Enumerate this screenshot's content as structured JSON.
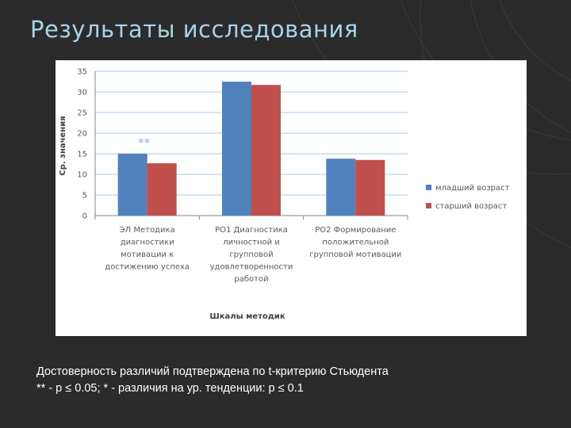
{
  "slide": {
    "title": "Результаты исследования",
    "note_line1": "Достоверность различий подтверждена по t-критерию Стьюдента",
    "note_line2": "** - p ≤ 0.05; * - различия на ур. тенденции: p ≤ 0.1"
  },
  "chart_data": {
    "type": "bar",
    "categories": [
      [
        "ЭЛ   Методика",
        "диагностики",
        "мотивации к",
        "достижению успеха"
      ],
      [
        "РО1  Диагностика",
        "личностной и",
        "групповой",
        "удовлетворенности",
        "работой"
      ],
      [
        "РО2  Формирование",
        "положительной",
        "групповой мотивации"
      ]
    ],
    "series": [
      {
        "name": "младший возраст",
        "color": "#4f81bd",
        "values": [
          15,
          32.5,
          13.8
        ]
      },
      {
        "name": "старший возраст",
        "color": "#c0504d",
        "values": [
          12.7,
          31.7,
          13.5
        ]
      }
    ],
    "annotations": [
      {
        "category_index": 0,
        "text": "**"
      }
    ],
    "xlabel": "Шкалы методик",
    "ylabel": "Ср. значения",
    "ylim": [
      0,
      35
    ],
    "yticks": [
      0,
      5,
      10,
      15,
      20,
      25,
      30,
      35
    ],
    "grid": true,
    "legend_position": "right",
    "colors": {
      "axis_text": "#595959",
      "grid": "#a8c8e8",
      "axis_label": "#404040"
    }
  }
}
